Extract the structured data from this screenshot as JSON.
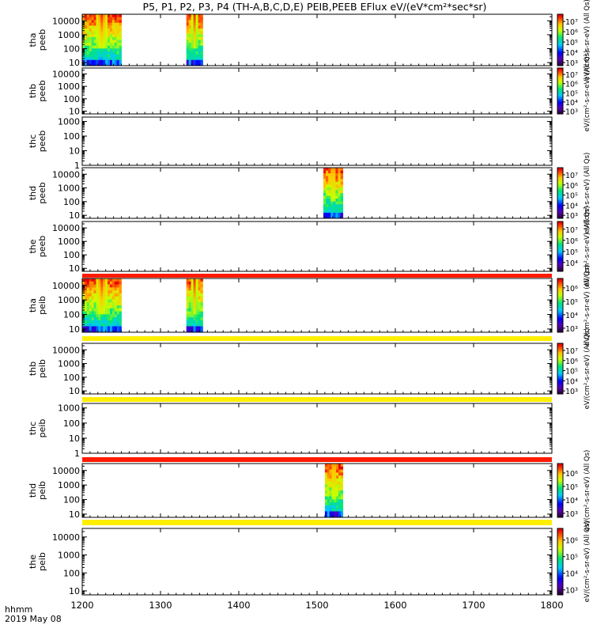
{
  "chart_data": {
    "type": "heatmap",
    "title": "P5, P1, P2, P3, P4 (TH-A,B,C,D,E) PEIB,PEEB EFlux eV/(eV*cm²*sec*sr)",
    "x_axis": {
      "range": [
        1200,
        1800
      ],
      "ticks": [
        "1200",
        "1300",
        "1400",
        "1500",
        "1600",
        "1700",
        "1800"
      ],
      "label_line1": "hhmm",
      "label_line2": "2019 May 08"
    },
    "y_scale": "log",
    "colormap": "rainbow (black-purple-blue-cyan-green-yellow-red)",
    "panels": [
      {
        "name": "tha peeb",
        "probe": "tha",
        "instrument": "peeb",
        "yticks": [
          "10",
          "100",
          "1000",
          "10000"
        ],
        "ylim": [
          6,
          30000
        ],
        "intervals": [
          [
            1200,
            1250
          ],
          [
            1333,
            1354
          ]
        ],
        "colorbar": {
          "ticks": [
            "10³",
            "10⁴",
            "10⁵",
            "10⁶",
            "10⁷"
          ],
          "exp_range": [
            2.7,
            7.7
          ],
          "label": "eV/(cm²-s-sr-eV) (All Qs)"
        }
      },
      {
        "name": "thb peeb",
        "probe": "thb",
        "instrument": "peeb",
        "yticks": [
          "10",
          "100",
          "1000",
          "10000"
        ],
        "ylim": [
          6,
          30000
        ],
        "intervals": [],
        "colorbar": {
          "ticks": [
            "10³",
            "10⁴",
            "10⁵",
            "10⁶",
            "10⁷"
          ],
          "exp_range": [
            2.7,
            7.7
          ],
          "label": "eV/(cm²-s-sr-eV) (All Qs)"
        }
      },
      {
        "name": "thc peeb",
        "probe": "thc",
        "instrument": "peeb",
        "yticks": [
          "1",
          "10",
          "100",
          "1000"
        ],
        "ylim": [
          1,
          2000
        ],
        "intervals": [],
        "colorbar": null
      },
      {
        "name": "thd peeb",
        "probe": "thd",
        "instrument": "peeb",
        "yticks": [
          "10",
          "100",
          "1000",
          "10000"
        ],
        "ylim": [
          6,
          30000
        ],
        "intervals": [
          [
            1508,
            1533
          ]
        ],
        "colorbar": {
          "ticks": [
            "10³",
            "10⁴",
            "10⁵",
            "10⁶",
            "10⁷"
          ],
          "exp_range": [
            2.7,
            7.7
          ],
          "label": "eV/(cm²-s-sr-eV) (All Qs)"
        }
      },
      {
        "name": "the peeb",
        "probe": "the",
        "instrument": "peeb",
        "yticks": [
          "10",
          "100",
          "1000",
          "10000"
        ],
        "ylim": [
          6,
          30000
        ],
        "intervals": [],
        "colorbar": {
          "ticks": [
            "10⁴",
            "10⁵",
            "10⁶",
            "10⁷"
          ],
          "exp_range": [
            3.2,
            7.7
          ],
          "label": "eV/(cm²-s-sr-eV) (All Qs)"
        }
      },
      {
        "name": "tha peib",
        "probe": "tha",
        "instrument": "peib",
        "yticks": [
          "10",
          "100",
          "1000",
          "10000"
        ],
        "ylim": [
          6,
          30000
        ],
        "intervals": [
          [
            1200,
            1250
          ],
          [
            1333,
            1354
          ]
        ],
        "colorbar": {
          "ticks": [
            "10³",
            "10⁴",
            "10⁵",
            "10⁶"
          ],
          "exp_range": [
            2.7,
            6.7
          ],
          "label": "eV/(cm²-s-sr-eV) (All Qs)"
        }
      },
      {
        "name": "thb peib",
        "probe": "thb",
        "instrument": "peib",
        "yticks": [
          "10",
          "100",
          "1000",
          "10000"
        ],
        "ylim": [
          6,
          30000
        ],
        "intervals": [],
        "colorbar": {
          "ticks": [
            "10³",
            "10⁴",
            "10⁵",
            "10⁶",
            "10⁷"
          ],
          "exp_range": [
            2.7,
            7.7
          ],
          "label": "eV/(cm²-s-sr-eV) (All Qs)"
        }
      },
      {
        "name": "thc peib",
        "probe": "thc",
        "instrument": "peib",
        "yticks": [
          "1",
          "10",
          "100",
          "1000"
        ],
        "ylim": [
          1,
          2000
        ],
        "intervals": [],
        "colorbar": null
      },
      {
        "name": "thd peib",
        "probe": "thd",
        "instrument": "peib",
        "yticks": [
          "10",
          "100",
          "1000",
          "10000"
        ],
        "ylim": [
          6,
          30000
        ],
        "intervals": [
          [
            1510,
            1533
          ]
        ],
        "colorbar": {
          "ticks": [
            "10³",
            "10⁴",
            "10⁵",
            "10⁶"
          ],
          "exp_range": [
            2.7,
            6.7
          ],
          "label": "eV/(cm²-s-sr-eV) (All Qs)"
        }
      },
      {
        "name": "the peib",
        "probe": "the",
        "instrument": "peib",
        "yticks": [
          "10",
          "100",
          "1000",
          "10000"
        ],
        "ylim": [
          6,
          30000
        ],
        "intervals": [],
        "colorbar": {
          "ticks": [
            "10³",
            "10⁴",
            "10⁵",
            "10⁶"
          ],
          "exp_range": [
            2.7,
            6.7
          ],
          "label": "eV/(cm²-s-sr-eV) (All Qs)"
        }
      }
    ],
    "separator_bands": [
      {
        "after_panel": "the peeb",
        "color": "#ff1a00"
      },
      {
        "after_panel": "tha peib",
        "color": "#ffee00"
      },
      {
        "after_panel": "thb peib",
        "color": "#ffee00"
      },
      {
        "after_panel": "thc peib",
        "color": "#ff1a00"
      },
      {
        "after_panel": "thd peib",
        "color": "#ffee00"
      }
    ]
  }
}
